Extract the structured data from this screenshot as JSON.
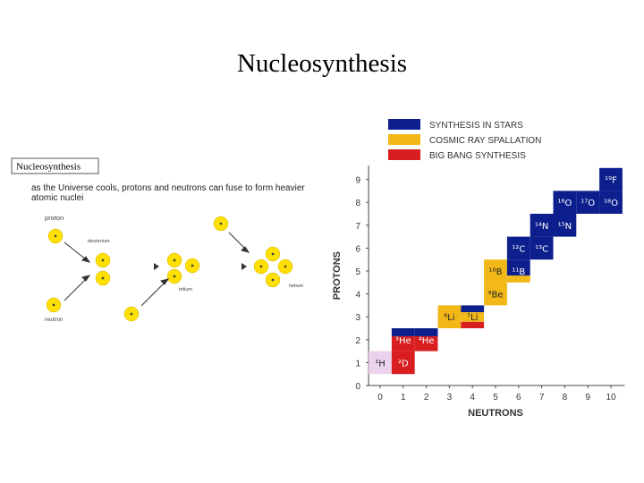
{
  "slide": {
    "title": "Nucleosynthesis"
  },
  "left_figure": {
    "box_title": "Nucleosynthesis",
    "caption_line1": "as the Universe cools, protons and neutrons can fuse to form heavier",
    "caption_line2": "atomic nuclei",
    "label_proton": "proton",
    "label_neutron": "neutron",
    "label_deuterium": "deuterium",
    "label_tritium": "tritium",
    "label_helium": "helium",
    "colors": {
      "particle": "#ffe000",
      "particle_text": "#444444"
    }
  },
  "chart_data": {
    "type": "heatmap",
    "title": "",
    "xlabel": "NEUTRONS",
    "ylabel": "PROTONS",
    "xlim": [
      0,
      10
    ],
    "ylim": [
      0,
      9
    ],
    "x_ticks": [
      "0",
      "1",
      "2",
      "3",
      "4",
      "5",
      "6",
      "7",
      "8",
      "9",
      "10"
    ],
    "y_ticks": [
      "0",
      "1",
      "2",
      "3",
      "4",
      "5",
      "6",
      "7",
      "8",
      "9"
    ],
    "legend_position": "top",
    "legend": [
      {
        "label": "SYNTHESIS IN STARS",
        "color": "#0c1f8c"
      },
      {
        "label": "COSMIC RAY SPALLATION",
        "color": "#f2b818"
      },
      {
        "label": "BIG BANG SYNTHESIS",
        "color": "#d81e1e"
      }
    ],
    "cells": [
      {
        "label": "¹H",
        "n": 0,
        "p": 1,
        "process": "hydrogen"
      },
      {
        "label": "²D",
        "n": 1,
        "p": 1,
        "process": "big_bang"
      },
      {
        "label": "³He",
        "n": 1,
        "p": 2,
        "process": "big_bang_stars"
      },
      {
        "label": "⁴He",
        "n": 2,
        "p": 2,
        "process": "big_bang_stars"
      },
      {
        "label": "⁶Li",
        "n": 3,
        "p": 3,
        "process": "spallation"
      },
      {
        "label": "⁷Li",
        "n": 4,
        "p": 3,
        "process": "all"
      },
      {
        "label": "⁹Be",
        "n": 5,
        "p": 4,
        "process": "spallation"
      },
      {
        "label": "¹⁰B",
        "n": 5,
        "p": 5,
        "process": "spallation"
      },
      {
        "label": "¹¹B",
        "n": 6,
        "p": 5,
        "process": "stars_spallation"
      },
      {
        "label": "¹²C",
        "n": 6,
        "p": 6,
        "process": "stars"
      },
      {
        "label": "¹³C",
        "n": 7,
        "p": 6,
        "process": "stars"
      },
      {
        "label": "¹⁴N",
        "n": 7,
        "p": 7,
        "process": "stars"
      },
      {
        "label": "¹⁵N",
        "n": 8,
        "p": 7,
        "process": "stars"
      },
      {
        "label": "¹⁶O",
        "n": 8,
        "p": 8,
        "process": "stars"
      },
      {
        "label": "¹⁷O",
        "n": 9,
        "p": 8,
        "process": "stars"
      },
      {
        "label": "¹⁸O",
        "n": 10,
        "p": 8,
        "process": "stars"
      },
      {
        "label": "¹⁹F",
        "n": 10,
        "p": 9,
        "process": "stars"
      }
    ],
    "colors": {
      "stars": "#0c1f8c",
      "spallation": "#f2b818",
      "big_bang": "#d81e1e",
      "hydrogen": "#ecd2ec",
      "label_light": "#ffffff",
      "label_dark": "#222222",
      "axis": "#444444"
    }
  }
}
